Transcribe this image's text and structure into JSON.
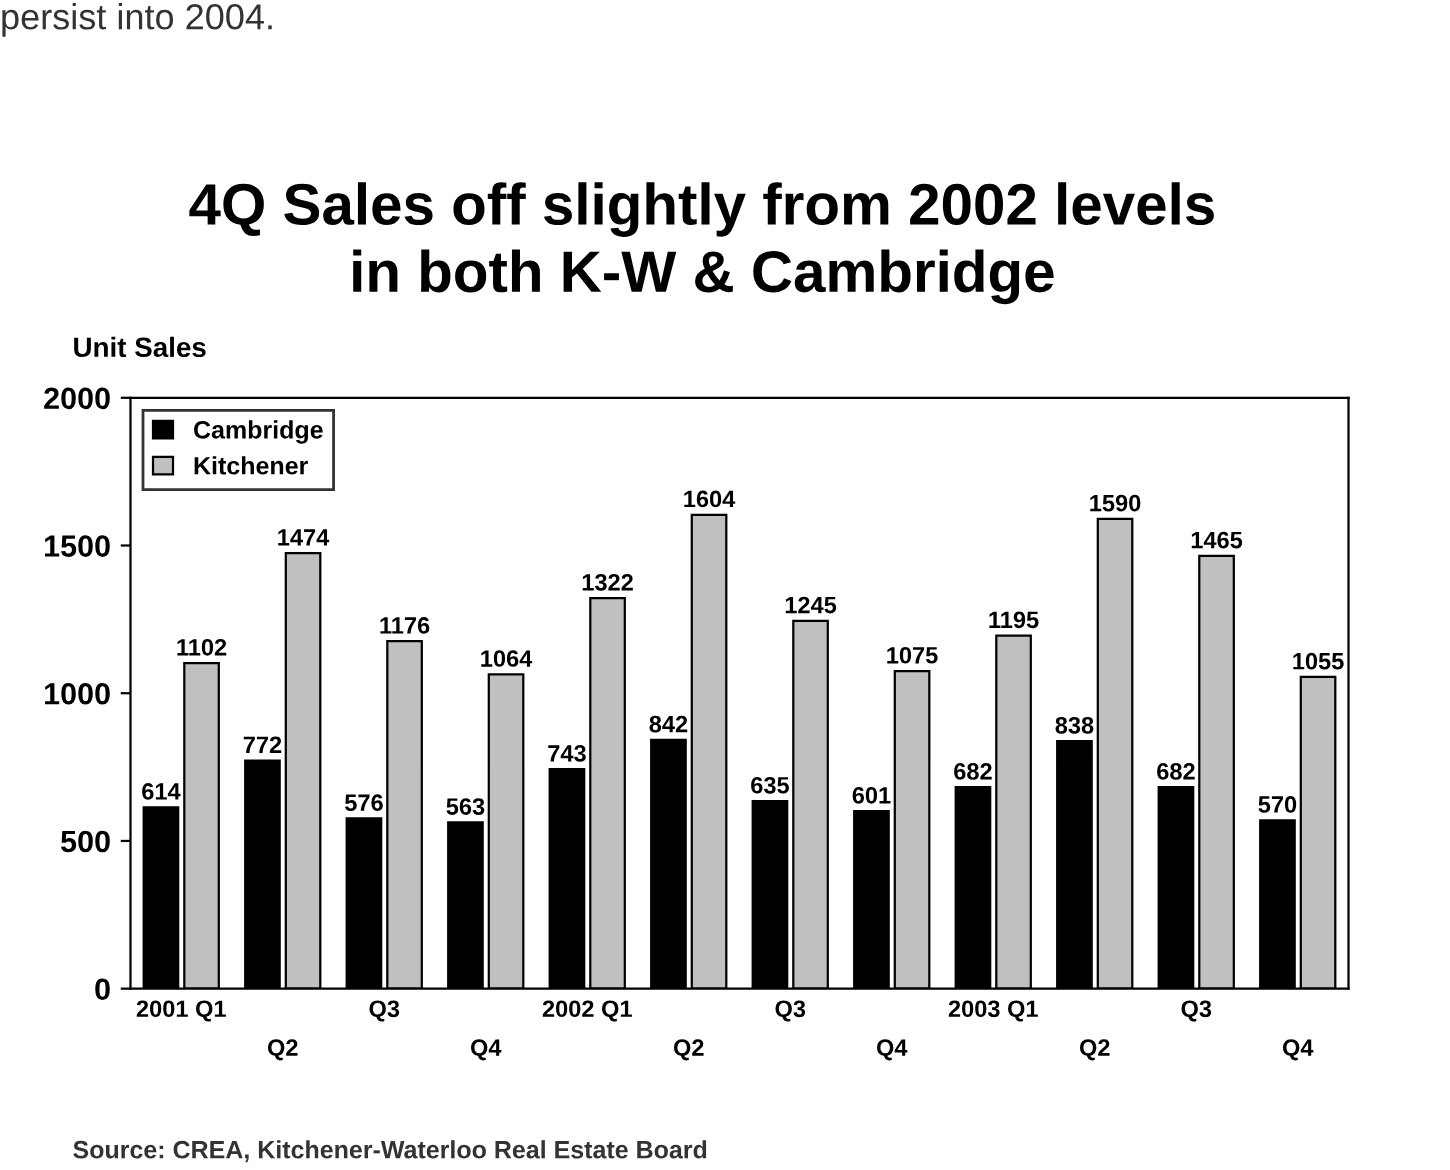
{
  "chart_data": {
    "type": "bar",
    "title": "4Q Sales off slightly from 2002 levels\nin both K-W & Cambridge",
    "ylabel": "Unit Sales",
    "annotations": [
      "persist into 2004.",
      "Source: CREA, Kitchener-Waterloo Real Estate Board"
    ],
    "categories": [
      "2001 Q1",
      "Q2",
      "Q3",
      "Q4",
      "2002 Q1",
      "Q2",
      "Q3",
      "Q4",
      "2003 Q1",
      "Q2",
      "Q3",
      "Q4"
    ],
    "series": [
      {
        "name": "Cambridge",
        "color": "#000000",
        "values": [
          614,
          772,
          576,
          563,
          743,
          842,
          635,
          601,
          682,
          838,
          682,
          570
        ]
      },
      {
        "name": "Kitchener",
        "color": "#c0c0c0",
        "values": [
          1102,
          1474,
          1176,
          1064,
          1322,
          1604,
          1245,
          1075,
          1195,
          1590,
          1465,
          1055
        ]
      }
    ],
    "ylim": [
      0,
      2000
    ],
    "yticks": [
      0,
      500,
      1000,
      1500,
      2000
    ],
    "data_labels": true,
    "legend": "top left",
    "grid": false
  }
}
